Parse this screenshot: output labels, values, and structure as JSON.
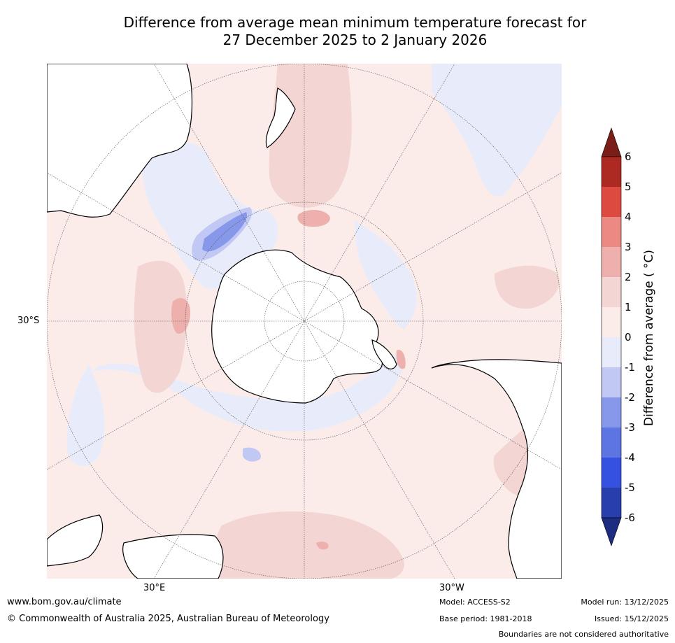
{
  "title": {
    "line1": "Difference from average mean minimum temperature forecast for",
    "line2": "27 December 2025 to 2 January 2026"
  },
  "map": {
    "projection": "south polar stereographic",
    "lat_label": "30°S",
    "lon_labels": [
      "30°E",
      "30°W"
    ],
    "land_colour": "#ffffff",
    "coastline_colour": "#000000",
    "graticule_colour": "#555555"
  },
  "colorbar": {
    "title": "Difference from average ( °C)",
    "ticks": [
      "6",
      "5",
      "4",
      "3",
      "2",
      "1",
      "0",
      "-1",
      "-2",
      "-3",
      "-4",
      "-5",
      "-6"
    ],
    "levels": [
      {
        "range": "> 6",
        "color": "#7a1e17"
      },
      {
        "range": "5 to 6",
        "color": "#ad2a23"
      },
      {
        "range": "4 to 5",
        "color": "#dd4a3f"
      },
      {
        "range": "3 to 4",
        "color": "#ea8a82"
      },
      {
        "range": "2 to 3",
        "color": "#eeb0ac"
      },
      {
        "range": "1 to 2",
        "color": "#f3d5d3"
      },
      {
        "range": "0 to 1",
        "color": "#fbecea"
      },
      {
        "range": "-1 to 0",
        "color": "#e8ecfa"
      },
      {
        "range": "-2 to -1",
        "color": "#c0c8f3"
      },
      {
        "range": "-3 to -2",
        "color": "#8797ea"
      },
      {
        "range": "-4 to -3",
        "color": "#5d74e3"
      },
      {
        "range": "-5 to -4",
        "color": "#3451e0"
      },
      {
        "range": "-6 to -5",
        "color": "#283ead"
      },
      {
        "range": "< -6",
        "color": "#1c2c80"
      }
    ]
  },
  "footer": {
    "url": "www.bom.gov.au/climate",
    "copyright": "© Commonwealth of Australia 2025, Australian Bureau of Meteorology",
    "model": "Model: ACCESS-S2",
    "base_period": "Base period: 1981-2018",
    "model_run": "Model run: 13/12/2025",
    "issued": "Issued: 15/12/2025",
    "disclaimer": "Boundaries are not considered authoritative"
  }
}
